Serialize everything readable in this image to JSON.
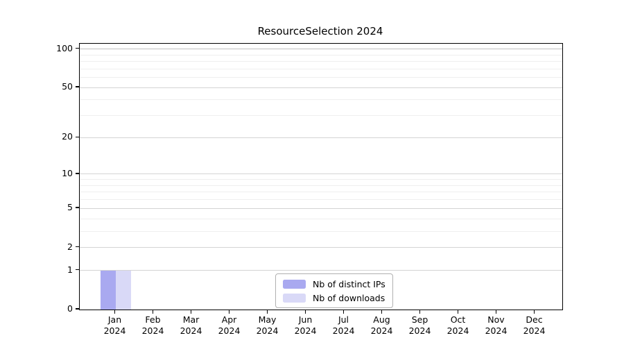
{
  "page": {
    "background": "#ffffff"
  },
  "chart_data": {
    "type": "bar",
    "title": "ResourceSelection 2024",
    "months": [
      "Jan",
      "Feb",
      "Mar",
      "Apr",
      "May",
      "Jun",
      "Jul",
      "Aug",
      "Sep",
      "Oct",
      "Nov",
      "Dec"
    ],
    "year": "2024",
    "series": [
      {
        "name": "Nb of distinct IPs",
        "color": "#a9a9f0",
        "values": [
          1,
          0,
          0,
          0,
          0,
          0,
          0,
          0,
          0,
          0,
          0,
          0
        ]
      },
      {
        "name": "Nb of downloads",
        "color": "#d9d9f7",
        "values": [
          1,
          0,
          0,
          0,
          0,
          0,
          0,
          0,
          0,
          0,
          0,
          0
        ]
      }
    ],
    "yticks": [
      0,
      1,
      2,
      5,
      10,
      20,
      50,
      100
    ],
    "y_minor_ticks": [
      3,
      4,
      6,
      7,
      8,
      9,
      30,
      40,
      60,
      70,
      80,
      90
    ],
    "scale": "log1p",
    "ylim": [
      0,
      110
    ],
    "xlabel": "",
    "ylabel": "",
    "grid": "horizontal",
    "legend_position": "bottom-center",
    "colors": {
      "grid_minor": "#efefef",
      "grid_major": "#d4d4d4",
      "grid_top": "#c0c0c0",
      "axis": "#000000",
      "text": "#000000",
      "plot_background": "#ffffff"
    }
  }
}
